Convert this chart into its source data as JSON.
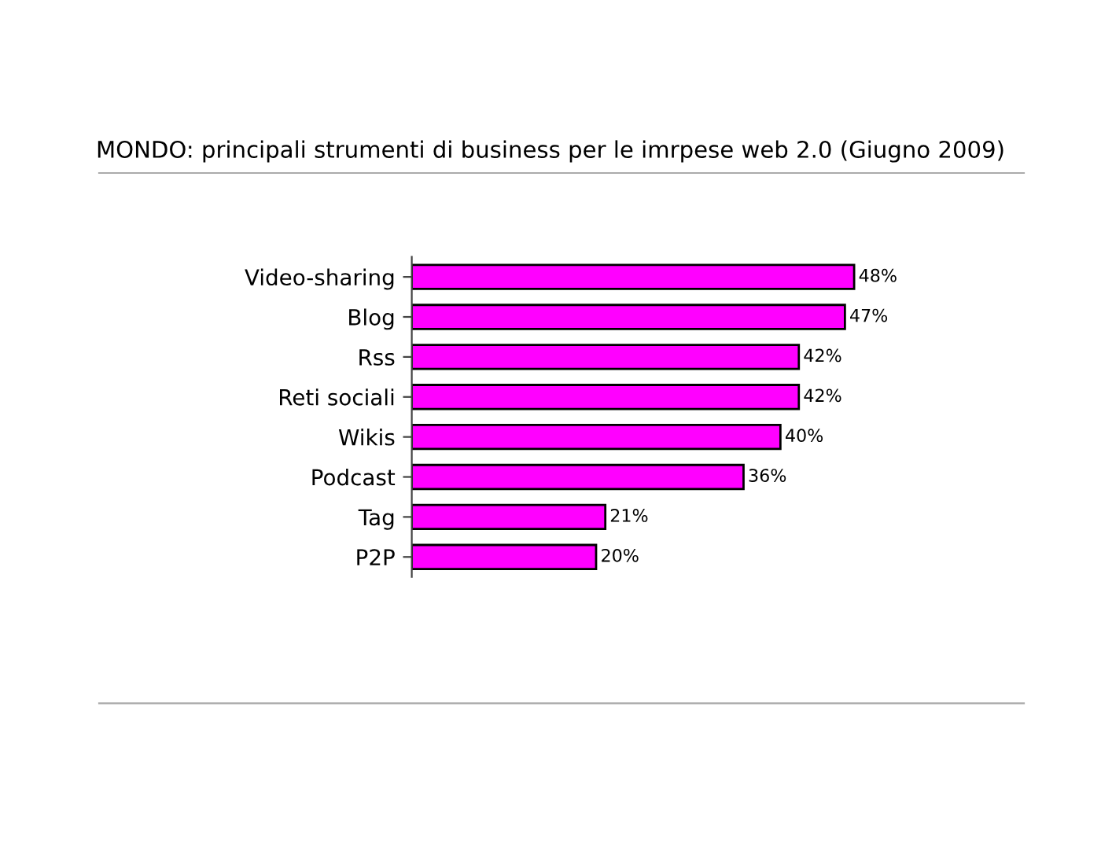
{
  "chart_data": {
    "type": "bar",
    "orientation": "horizontal",
    "title": "MONDO: principali strumenti di business per le imrpese web 2.0 (Giugno 2009)",
    "categories": [
      "Video-sharing",
      "Blog",
      "Rss",
      "Reti sociali",
      "Wikis",
      "Podcast",
      "Tag",
      "P2P"
    ],
    "values": [
      48,
      47,
      42,
      42,
      40,
      36,
      21,
      20
    ],
    "value_labels": [
      "48%",
      "47%",
      "42%",
      "42%",
      "40%",
      "36%",
      "21%",
      "20%"
    ],
    "color": "#ff00ff",
    "tick_labels": "y",
    "grid": false,
    "legend": false
  }
}
